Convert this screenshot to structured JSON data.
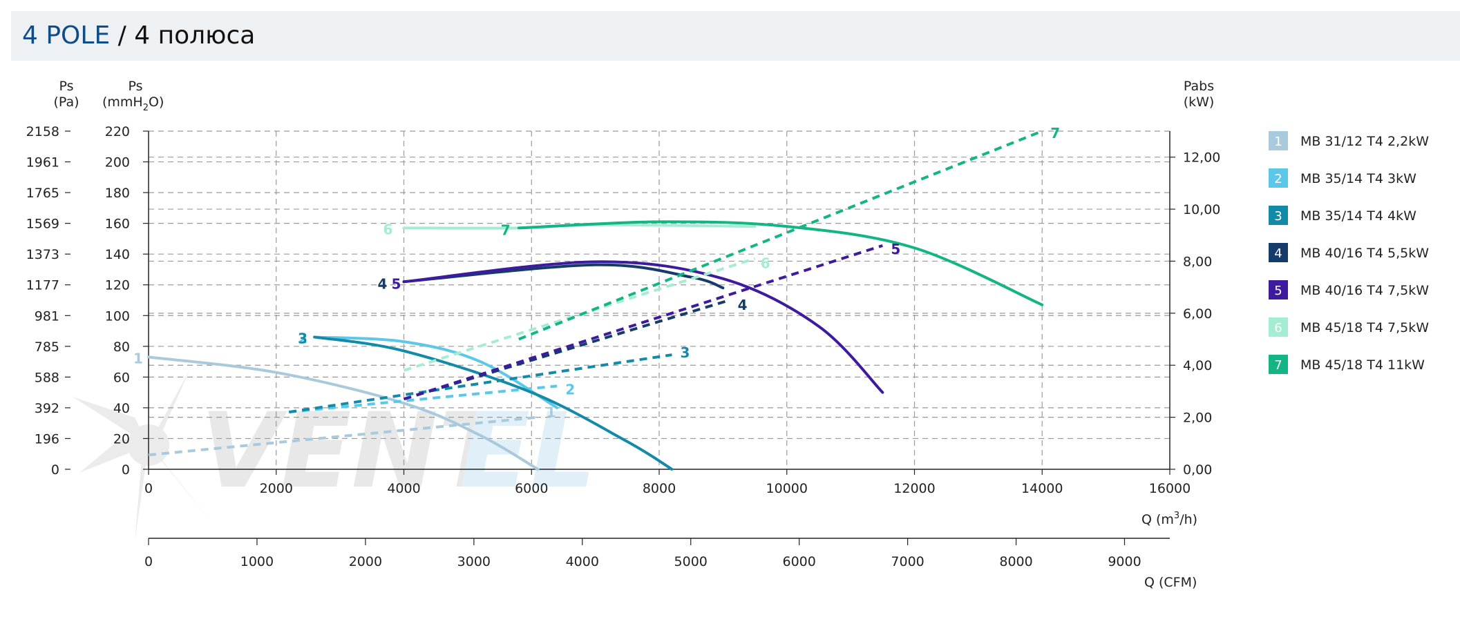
{
  "header": {
    "title_pole": "4 POLE",
    "title_sep": " / ",
    "title_ru": "4 полюса"
  },
  "chart_data": {
    "type": "line",
    "axes": {
      "left_pa": {
        "label_line1": "Ps",
        "label_line2": "(Pa)",
        "ticks": [
          "0",
          "196",
          "392",
          "588",
          "785",
          "981",
          "1177",
          "1373",
          "1569",
          "1765",
          "1961",
          "2158"
        ]
      },
      "left_mmh2o": {
        "label_line1": "Ps",
        "label_line2_pre": "(mmH",
        "label_line2_sub": "2",
        "label_line2_post": "O)",
        "ticks": [
          0,
          20,
          40,
          60,
          80,
          100,
          120,
          140,
          160,
          180,
          200,
          220
        ],
        "ylim": [
          0,
          220
        ]
      },
      "right_kw": {
        "label_line1": "Pabs",
        "label_line2": "(kW)",
        "ticks": [
          "0,00",
          "2,00",
          "4,00",
          "6,00",
          "8,00",
          "10,00",
          "12,00"
        ],
        "ylim": [
          0,
          13
        ]
      },
      "x_m3h": {
        "label_pre": "Q (m",
        "label_sup": "3",
        "label_post": "/h)",
        "ticks": [
          0,
          2000,
          4000,
          6000,
          8000,
          10000,
          12000,
          14000,
          16000
        ],
        "xlim": [
          0,
          16000
        ]
      },
      "x_cfm": {
        "label": "Q (CFM)",
        "ticks": [
          0,
          1000,
          2000,
          3000,
          4000,
          5000,
          6000,
          7000,
          8000,
          9000
        ]
      }
    },
    "grid": true,
    "legend_position": "right",
    "series": [
      {
        "id": "1",
        "name": "MB 31/12 T4 2,2kW",
        "color": "#a9cadd",
        "pressure": [
          [
            0,
            73
          ],
          [
            2000,
            63
          ],
          [
            4000,
            43
          ],
          [
            5200,
            22
          ],
          [
            6100,
            0
          ]
        ],
        "power": [
          [
            0,
            0.55
          ],
          [
            6100,
            2.0
          ]
        ]
      },
      {
        "id": "2",
        "name": "MB 35/14 T4 3kW",
        "color": "#5bc8ea",
        "pressure": [
          [
            2600,
            86
          ],
          [
            4000,
            83
          ],
          [
            5200,
            70
          ],
          [
            6400,
            40
          ]
        ],
        "power": [
          [
            2200,
            2.2
          ],
          [
            6400,
            3.2
          ]
        ]
      },
      {
        "id": "3",
        "name": "MB 35/14 T4 4kW",
        "color": "#138aa8",
        "pressure": [
          [
            2600,
            86
          ],
          [
            4000,
            77
          ],
          [
            6000,
            50
          ],
          [
            7500,
            18
          ],
          [
            8200,
            0
          ]
        ],
        "power": [
          [
            2200,
            2.2
          ],
          [
            8200,
            4.4
          ]
        ]
      },
      {
        "id": "4",
        "name": "MB 40/16 T4 5,5kW",
        "color": "#143b6a",
        "pressure": [
          [
            4000,
            122
          ],
          [
            7000,
            133
          ],
          [
            8500,
            125
          ],
          [
            9000,
            118
          ]
        ],
        "power": [
          [
            4000,
            2.7
          ],
          [
            9100,
            6.5
          ]
        ]
      },
      {
        "id": "5",
        "name": "MB 40/16 T4 7,5kW",
        "color": "#3d1a9e",
        "pressure": [
          [
            4000,
            122
          ],
          [
            7000,
            135
          ],
          [
            9000,
            124
          ],
          [
            10500,
            93
          ],
          [
            11500,
            50
          ]
        ],
        "power": [
          [
            4000,
            2.7
          ],
          [
            11500,
            8.6
          ]
        ]
      },
      {
        "id": "6",
        "name": "MB 45/18 T4 7,5kW",
        "color": "#a4ecd2",
        "pressure": [
          [
            4000,
            157
          ],
          [
            5800,
            157
          ],
          [
            7000,
            159
          ],
          [
            9500,
            158
          ]
        ],
        "power": [
          [
            4000,
            3.8
          ],
          [
            9500,
            8.1
          ]
        ]
      },
      {
        "id": "7",
        "name": "MB 45/18 T4 11kW",
        "color": "#14b585",
        "pressure": [
          [
            5800,
            157
          ],
          [
            8000,
            161
          ],
          [
            10000,
            158
          ],
          [
            12000,
            144
          ],
          [
            14000,
            107
          ]
        ],
        "power": [
          [
            5800,
            5.0
          ],
          [
            14000,
            13.0
          ]
        ]
      }
    ]
  }
}
